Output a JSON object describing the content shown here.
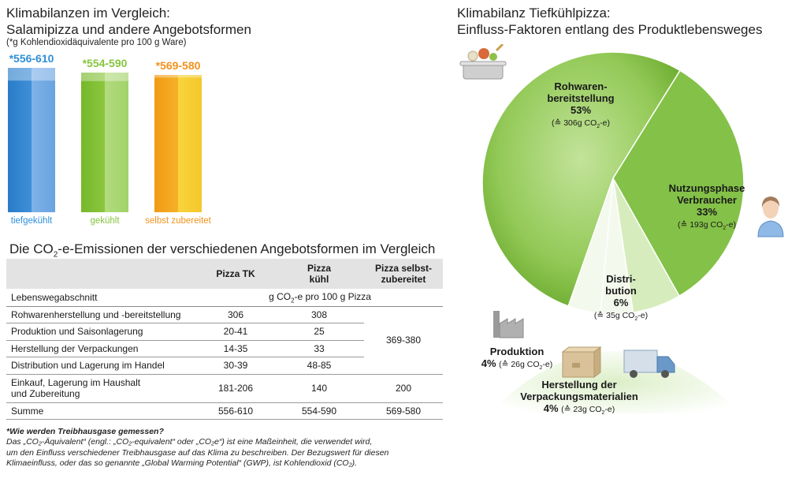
{
  "left_chart": {
    "title_line1": "Klimabilanzen im Vergleich:",
    "title_line2": "Salamipizza und andere Angebotsformen",
    "subtitle": "(*g Kohlendioxidäquivalente pro 100 g Ware)"
  },
  "right_chart": {
    "title_line1": "Klimabilanz Tiefkühlpizza:",
    "title_line2": "Einfluss-Faktoren entlang des Produktlebensweges"
  },
  "table": {
    "title_pre": "Die CO",
    "title_sub": "2",
    "title_post": "-e-Emissionen der verschiedenen Angebotsformen im Vergleich",
    "headers": [
      "",
      "Pizza TK",
      "Pizza kühl",
      "Pizza selbst-zubereitet"
    ],
    "header_col2_line1": "Pizza",
    "header_col2_line2": "kühl",
    "header_col3_line1": "Pizza selbst-",
    "header_col3_line2": "zubereitet",
    "unit_row_label": "Lebenswegabschnitt",
    "unit_pre": "g CO",
    "unit_sub": "2",
    "unit_post": "-e pro 100 g Pizza",
    "rows": [
      {
        "label": "Rohwarenherstellung und -bereitstellung",
        "tk": "306",
        "kuehl": "308"
      },
      {
        "label": "Produktion und Saisonlagerung",
        "tk": "20-41",
        "kuehl": "25"
      },
      {
        "label": "Herstellung der Verpackungen",
        "tk": "14-35",
        "kuehl": "33"
      },
      {
        "label": "Distribution und Lagerung im Handel",
        "tk": "30-39",
        "kuehl": "48-85"
      }
    ],
    "merged_value": "369-380",
    "row_consumer_line1": "Einkauf, Lagerung im Haushalt",
    "row_consumer_line2": "und Zubereitung",
    "row_consumer_tk": "181-206",
    "row_consumer_kuehl": "140",
    "row_consumer_self": "200",
    "sum_label": "Summe",
    "sum_tk": "556-610",
    "sum_kuehl": "554-590",
    "sum_self": "569-580"
  },
  "footnote": {
    "heading": "*Wie werden Treibhausgase gemessen?",
    "line1": "Das „CO₂-Äquivalent“ (engl.: „CO₂-equivalent“ oder „CO₂e“) ist eine Maßeinheit, die verwendet wird,",
    "line2": "um den Einfluss verschiedener Treibhausgase auf das Klima zu beschreiben. Der Bezugswert für diesen",
    "line3": "Klimaeinfluss, oder das so genannte „Global Warming Potential“ (GWP), ist Kohlendioxid (CO₂)."
  },
  "colors": {
    "blue": "#3b88d4",
    "green": "#8cc63f",
    "orange": "#f5a81c",
    "pie_green": "#97cc5c",
    "text_blue": "#2f8fd8",
    "text_green": "#86c540",
    "text_orange": "#f0921c"
  },
  "chart_data": [
    {
      "type": "bar",
      "categories": [
        "tiefgekühlt",
        "gekühlt",
        "selbst zubereitet"
      ],
      "value_labels": [
        "*556-610",
        "*554-590",
        "*569-580"
      ],
      "ranges": [
        [
          556,
          610
        ],
        [
          554,
          590
        ],
        [
          569,
          580
        ]
      ],
      "values": [
        610,
        590,
        580
      ],
      "ylim": [
        0,
        640
      ]
    },
    {
      "type": "pie",
      "slices": [
        {
          "line1": "Rohwaren-",
          "line2": "bereitstellung",
          "percent_label": "53%",
          "value": 53,
          "co2_pre": "(≙ 306g CO",
          "co2_post": "-e)"
        },
        {
          "line1": "Nutzungsphase",
          "line2": "Verbraucher",
          "percent_label": "33%",
          "value": 33,
          "co2_pre": "(≙ 193g CO",
          "co2_post": "-e)"
        },
        {
          "line1": "Distri-",
          "line2": "bution",
          "percent_label": "6%",
          "value": 6,
          "co2_pre": "(≙ 35g CO",
          "co2_post": "-e)"
        },
        {
          "line1": "Produktion",
          "line2": "",
          "percent_label": "4%",
          "value": 4,
          "co2_pre": "(≙ 26g CO",
          "co2_post": "-e)"
        },
        {
          "line1": "Herstellung der",
          "line2": "Verpackungsmaterialien",
          "percent_label": "4%",
          "value": 4,
          "co2_pre": "(≙ 23g CO",
          "co2_post": "-e)"
        }
      ],
      "co2_sub": "2"
    }
  ],
  "icons": [
    "cooking-pot-icon",
    "consumer-person-icon",
    "factory-icon",
    "cardboard-box-icon",
    "delivery-truck-icon"
  ]
}
